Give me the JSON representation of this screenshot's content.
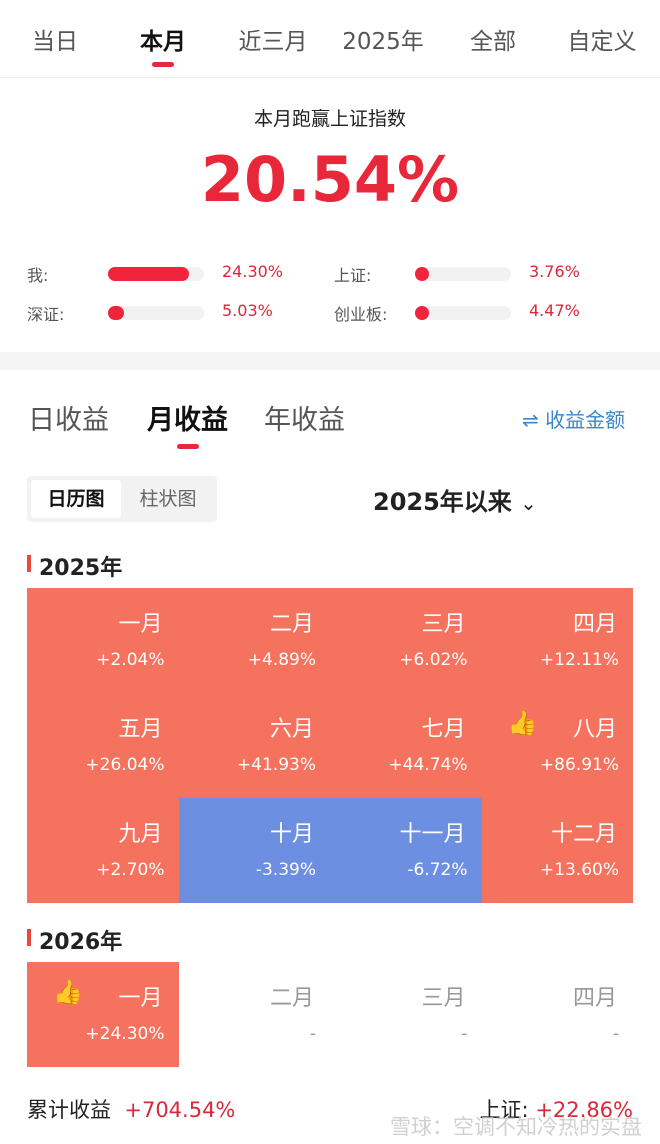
{
  "top_tabs": [
    "当日",
    "本月",
    "近三月",
    "2025年",
    "全部",
    "自定义"
  ],
  "summary": {
    "title": "本月跑赢上证指数",
    "value": "20.54%",
    "compare": [
      {
        "label": "我:",
        "value": "24.30%",
        "fill": 0.84
      },
      {
        "label": "上证:",
        "value": "3.76%",
        "fill": 0.13
      },
      {
        "label": "深证:",
        "value": "5.03%",
        "fill": 0.17
      },
      {
        "label": "创业板:",
        "value": "4.47%",
        "fill": 0.15
      }
    ]
  },
  "sub_tabs": [
    "日收益",
    "月收益",
    "年收益"
  ],
  "switch_label": "⇌ 收益金额",
  "view_toggle": [
    "日历图",
    "柱状图"
  ],
  "range": "2025年以来",
  "colors": {
    "up": "#f4725e",
    "down": "#6d8fe1",
    "accent": "#e8283a"
  },
  "years": [
    {
      "year": "2025年",
      "months": [
        {
          "m": "一月",
          "p": "+2.04%",
          "t": "up"
        },
        {
          "m": "二月",
          "p": "+4.89%",
          "t": "up"
        },
        {
          "m": "三月",
          "p": "+6.02%",
          "t": "up"
        },
        {
          "m": "四月",
          "p": "+12.11%",
          "t": "up"
        },
        {
          "m": "五月",
          "p": "+26.04%",
          "t": "up"
        },
        {
          "m": "六月",
          "p": "+41.93%",
          "t": "up"
        },
        {
          "m": "七月",
          "p": "+44.74%",
          "t": "up"
        },
        {
          "m": "八月",
          "p": "+86.91%",
          "t": "up",
          "best": true
        },
        {
          "m": "九月",
          "p": "+2.70%",
          "t": "up"
        },
        {
          "m": "十月",
          "p": "-3.39%",
          "t": "down"
        },
        {
          "m": "十一月",
          "p": "-6.72%",
          "t": "down"
        },
        {
          "m": "十二月",
          "p": "+13.60%",
          "t": "up"
        }
      ]
    },
    {
      "year": "2026年",
      "months": [
        {
          "m": "一月",
          "p": "+24.30%",
          "t": "up",
          "best": true
        },
        {
          "m": "二月",
          "p": "-",
          "t": "none"
        },
        {
          "m": "三月",
          "p": "-",
          "t": "none"
        },
        {
          "m": "四月",
          "p": "-",
          "t": "none"
        }
      ]
    }
  ],
  "footer": {
    "total_label": "累计收益",
    "total_value": "+704.54%",
    "index_label": "上证:",
    "index_value": "+22.86%"
  },
  "watermark": "雪球：空调不知冷热的实盘"
}
